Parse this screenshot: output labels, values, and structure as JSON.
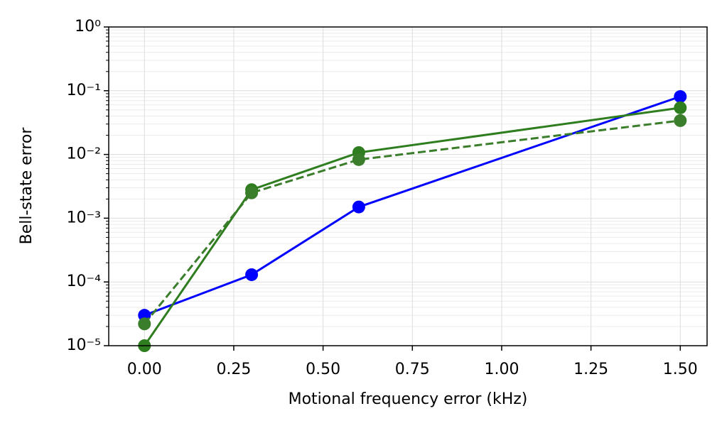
{
  "chart_data": {
    "type": "line",
    "xlabel": "Motional frequency error (kHz)",
    "ylabel": "Bell-state error",
    "x": [
      0,
      0.3,
      0.6,
      1.5
    ],
    "series": [
      {
        "color": "#0000ff",
        "linestyle": "solid",
        "values": [
          3e-05,
          0.00013,
          0.0015,
          0.081
        ]
      },
      {
        "color": "#2e7d1e",
        "linestyle": "solid",
        "values": [
          1e-05,
          0.0028,
          0.0107,
          0.054
        ]
      },
      {
        "color": "#3a7d2a",
        "linestyle": "dashed",
        "values": [
          2.2e-05,
          0.0025,
          0.0083,
          0.034
        ]
      }
    ],
    "xlim": [
      -0.1,
      1.575
    ],
    "xticks": [
      {
        "value": 0,
        "label": "0.00"
      },
      {
        "value": 0.25,
        "label": "0.25"
      },
      {
        "value": 0.5,
        "label": "0.50"
      },
      {
        "value": 0.75,
        "label": "0.75"
      },
      {
        "value": 1,
        "label": "1.00"
      },
      {
        "value": 1.25,
        "label": "1.25"
      },
      {
        "value": 1.5,
        "label": "1.50"
      }
    ],
    "ylim": [
      1e-05,
      1
    ],
    "yscale": "log",
    "yticks": [
      {
        "value": 1e-05,
        "label": "10⁻⁵"
      },
      {
        "value": 0.0001,
        "label": "10⁻⁴"
      },
      {
        "value": 0.001,
        "label": "10⁻³"
      },
      {
        "value": 0.01,
        "label": "10⁻²"
      },
      {
        "value": 0.1,
        "label": "10⁻¹"
      },
      {
        "value": 1,
        "label": "10⁰"
      }
    ],
    "grid": true
  }
}
